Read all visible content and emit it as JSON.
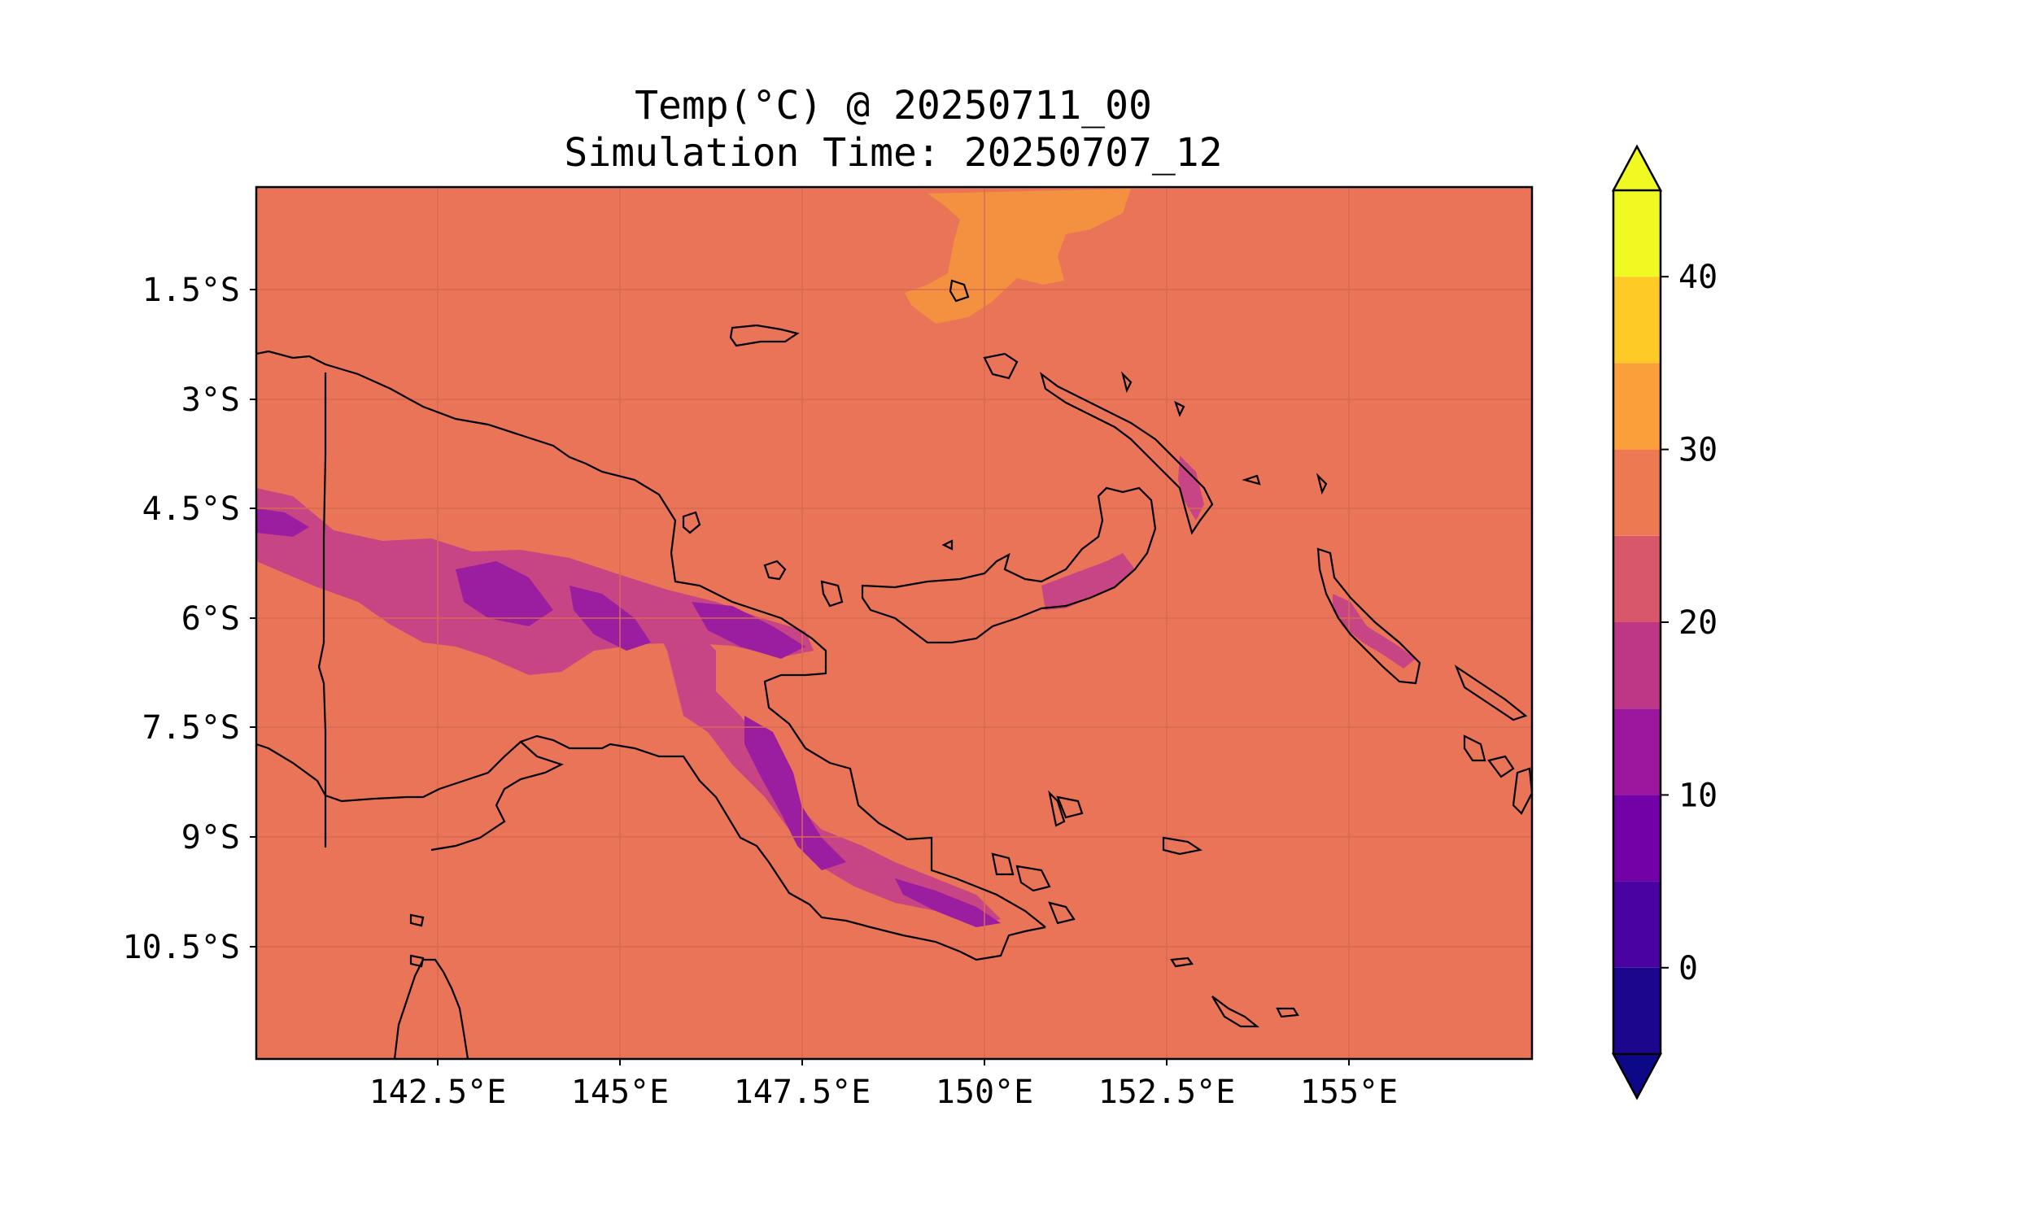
{
  "title": {
    "line1": "Temp(°C) @ 20250711_00",
    "line2": "Simulation Time: 20250707_12"
  },
  "map": {
    "background_color": "#e97458",
    "coastline_color": "#000000",
    "lon_ticks": [
      "142.5°E",
      "145°E",
      "147.5°E",
      "150°E",
      "152.5°E",
      "155°E"
    ],
    "lat_ticks": [
      "1.5°S",
      "3°S",
      "4.5°S",
      "6°S",
      "7.5°S",
      "9°S",
      "10.5°S"
    ]
  },
  "colorbar": {
    "extend": "both",
    "levels": [
      -5,
      0,
      5,
      10,
      15,
      20,
      25,
      30,
      35,
      40,
      45
    ],
    "colors": [
      "#1d068e",
      "#4a02a0",
      "#7201a8",
      "#9c179e",
      "#bd3786",
      "#d8576b",
      "#ed7953",
      "#fb9f3a",
      "#fdca26",
      "#f0f921"
    ],
    "under_color": "#0d0887",
    "over_color": "#f0f921",
    "tick_labels": [
      "0",
      "10",
      "20",
      "30",
      "40"
    ]
  },
  "chart_data": {
    "type": "heatmap",
    "title": "Temp(°C) @ 20250711_00",
    "subtitle": "Simulation Time: 20250707_12",
    "units": "°C",
    "x_ticks": [
      "142.5°E",
      "145°E",
      "147.5°E",
      "150°E",
      "152.5°E",
      "155°E"
    ],
    "y_ticks": [
      "1.5°S",
      "3°S",
      "4.5°S",
      "6°S",
      "7.5°S",
      "9°S",
      "10.5°S"
    ],
    "colorbar_range": [
      -5,
      45
    ],
    "colorbar_ticks": [
      0,
      10,
      20,
      30,
      40
    ],
    "dominant_value_range": [
      25,
      30
    ],
    "features": [
      {
        "value_range": [
          30,
          35
        ],
        "where": "ocean north of New Guinea"
      },
      {
        "value_range": [
          5,
          20
        ],
        "where": "New Guinea central highlands"
      },
      {
        "value_range": [
          15,
          25
        ],
        "where": "New Britain and Bougainville"
      }
    ]
  }
}
